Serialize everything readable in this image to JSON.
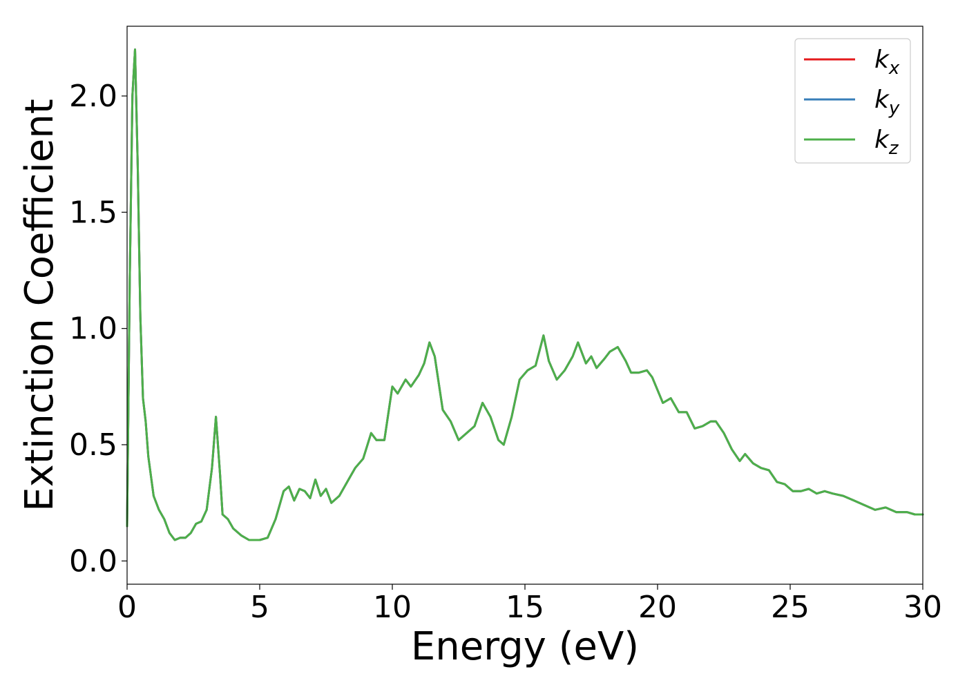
{
  "chart_data": {
    "type": "line",
    "title": "",
    "xlabel": "Energy (eV)",
    "ylabel": "Extinction Coefficient",
    "xlim": [
      0,
      30
    ],
    "ylim": [
      -0.1,
      2.3
    ],
    "xticks": [
      0,
      5,
      10,
      15,
      20,
      25,
      30
    ],
    "xtick_labels": [
      "0",
      "5",
      "10",
      "15",
      "20",
      "25",
      "30"
    ],
    "yticks": [
      0.0,
      0.5,
      1.0,
      1.5,
      2.0
    ],
    "ytick_labels": [
      "0.0",
      "0.5",
      "1.0",
      "1.5",
      "2.0"
    ],
    "grid": false,
    "legend_position": "top-right",
    "x": [
      0.0,
      0.1,
      0.2,
      0.3,
      0.4,
      0.5,
      0.6,
      0.7,
      0.8,
      1.0,
      1.2,
      1.4,
      1.6,
      1.8,
      2.0,
      2.2,
      2.4,
      2.6,
      2.8,
      3.0,
      3.2,
      3.35,
      3.5,
      3.6,
      3.8,
      4.0,
      4.3,
      4.6,
      5.0,
      5.3,
      5.6,
      5.9,
      6.1,
      6.3,
      6.5,
      6.7,
      6.9,
      7.1,
      7.3,
      7.5,
      7.7,
      8.0,
      8.3,
      8.6,
      8.9,
      9.2,
      9.4,
      9.7,
      10.0,
      10.2,
      10.5,
      10.7,
      11.0,
      11.2,
      11.4,
      11.6,
      11.9,
      12.2,
      12.5,
      12.8,
      13.1,
      13.4,
      13.7,
      14.0,
      14.2,
      14.5,
      14.8,
      15.1,
      15.4,
      15.7,
      15.9,
      16.2,
      16.5,
      16.8,
      17.0,
      17.3,
      17.5,
      17.7,
      18.0,
      18.2,
      18.5,
      18.8,
      19.0,
      19.3,
      19.6,
      19.8,
      20.2,
      20.5,
      20.8,
      21.1,
      21.4,
      21.7,
      22.0,
      22.2,
      22.5,
      22.8,
      23.1,
      23.3,
      23.6,
      23.9,
      24.2,
      24.5,
      24.8,
      25.1,
      25.4,
      25.7,
      26.0,
      26.3,
      26.6,
      27.0,
      27.4,
      27.8,
      28.2,
      28.6,
      29.0,
      29.4,
      29.7,
      30.0
    ],
    "series": [
      {
        "name": "k_x",
        "color": "#e41a1c",
        "values": [
          0.15,
          1.2,
          2.0,
          2.2,
          1.7,
          1.05,
          0.7,
          0.6,
          0.45,
          0.28,
          0.22,
          0.18,
          0.12,
          0.09,
          0.1,
          0.1,
          0.12,
          0.16,
          0.17,
          0.22,
          0.4,
          0.62,
          0.38,
          0.2,
          0.18,
          0.14,
          0.11,
          0.09,
          0.09,
          0.1,
          0.18,
          0.3,
          0.32,
          0.26,
          0.31,
          0.3,
          0.27,
          0.35,
          0.28,
          0.31,
          0.25,
          0.28,
          0.34,
          0.4,
          0.44,
          0.55,
          0.52,
          0.52,
          0.75,
          0.72,
          0.78,
          0.75,
          0.8,
          0.85,
          0.94,
          0.88,
          0.65,
          0.6,
          0.52,
          0.55,
          0.58,
          0.68,
          0.62,
          0.52,
          0.5,
          0.62,
          0.78,
          0.82,
          0.84,
          0.97,
          0.86,
          0.78,
          0.82,
          0.88,
          0.94,
          0.85,
          0.88,
          0.83,
          0.87,
          0.9,
          0.92,
          0.86,
          0.81,
          0.81,
          0.82,
          0.79,
          0.68,
          0.7,
          0.64,
          0.64,
          0.57,
          0.58,
          0.6,
          0.6,
          0.55,
          0.48,
          0.43,
          0.46,
          0.42,
          0.4,
          0.39,
          0.34,
          0.33,
          0.3,
          0.3,
          0.31,
          0.29,
          0.3,
          0.29,
          0.28,
          0.26,
          0.24,
          0.22,
          0.23,
          0.21,
          0.21,
          0.2,
          0.2
        ]
      },
      {
        "name": "k_y",
        "color": "#377eb8",
        "values": [
          0.15,
          1.2,
          2.0,
          2.2,
          1.7,
          1.05,
          0.7,
          0.6,
          0.45,
          0.28,
          0.22,
          0.18,
          0.12,
          0.09,
          0.1,
          0.1,
          0.12,
          0.16,
          0.17,
          0.22,
          0.4,
          0.62,
          0.38,
          0.2,
          0.18,
          0.14,
          0.11,
          0.09,
          0.09,
          0.1,
          0.18,
          0.3,
          0.32,
          0.26,
          0.31,
          0.3,
          0.27,
          0.35,
          0.28,
          0.31,
          0.25,
          0.28,
          0.34,
          0.4,
          0.44,
          0.55,
          0.52,
          0.52,
          0.75,
          0.72,
          0.78,
          0.75,
          0.8,
          0.85,
          0.94,
          0.88,
          0.65,
          0.6,
          0.52,
          0.55,
          0.58,
          0.68,
          0.62,
          0.52,
          0.5,
          0.62,
          0.78,
          0.82,
          0.84,
          0.97,
          0.86,
          0.78,
          0.82,
          0.88,
          0.94,
          0.85,
          0.88,
          0.83,
          0.87,
          0.9,
          0.92,
          0.86,
          0.81,
          0.81,
          0.82,
          0.79,
          0.68,
          0.7,
          0.64,
          0.64,
          0.57,
          0.58,
          0.6,
          0.6,
          0.55,
          0.48,
          0.43,
          0.46,
          0.42,
          0.4,
          0.39,
          0.34,
          0.33,
          0.3,
          0.3,
          0.31,
          0.29,
          0.3,
          0.29,
          0.28,
          0.26,
          0.24,
          0.22,
          0.23,
          0.21,
          0.21,
          0.2,
          0.2
        ]
      },
      {
        "name": "k_z",
        "color": "#4daf4a",
        "values": [
          0.15,
          1.2,
          2.0,
          2.2,
          1.7,
          1.05,
          0.7,
          0.6,
          0.45,
          0.28,
          0.22,
          0.18,
          0.12,
          0.09,
          0.1,
          0.1,
          0.12,
          0.16,
          0.17,
          0.22,
          0.4,
          0.62,
          0.38,
          0.2,
          0.18,
          0.14,
          0.11,
          0.09,
          0.09,
          0.1,
          0.18,
          0.3,
          0.32,
          0.26,
          0.31,
          0.3,
          0.27,
          0.35,
          0.28,
          0.31,
          0.25,
          0.28,
          0.34,
          0.4,
          0.44,
          0.55,
          0.52,
          0.52,
          0.75,
          0.72,
          0.78,
          0.75,
          0.8,
          0.85,
          0.94,
          0.88,
          0.65,
          0.6,
          0.52,
          0.55,
          0.58,
          0.68,
          0.62,
          0.52,
          0.5,
          0.62,
          0.78,
          0.82,
          0.84,
          0.97,
          0.86,
          0.78,
          0.82,
          0.88,
          0.94,
          0.85,
          0.88,
          0.83,
          0.87,
          0.9,
          0.92,
          0.86,
          0.81,
          0.81,
          0.82,
          0.79,
          0.68,
          0.7,
          0.64,
          0.64,
          0.57,
          0.58,
          0.6,
          0.6,
          0.55,
          0.48,
          0.43,
          0.46,
          0.42,
          0.4,
          0.39,
          0.34,
          0.33,
          0.3,
          0.3,
          0.31,
          0.29,
          0.3,
          0.29,
          0.28,
          0.26,
          0.24,
          0.22,
          0.23,
          0.21,
          0.21,
          0.2,
          0.2
        ]
      }
    ],
    "legend": [
      {
        "base": "k",
        "sub": "x",
        "color": "#e41a1c"
      },
      {
        "base": "k",
        "sub": "y",
        "color": "#377eb8"
      },
      {
        "base": "k",
        "sub": "z",
        "color": "#4daf4a"
      }
    ]
  }
}
